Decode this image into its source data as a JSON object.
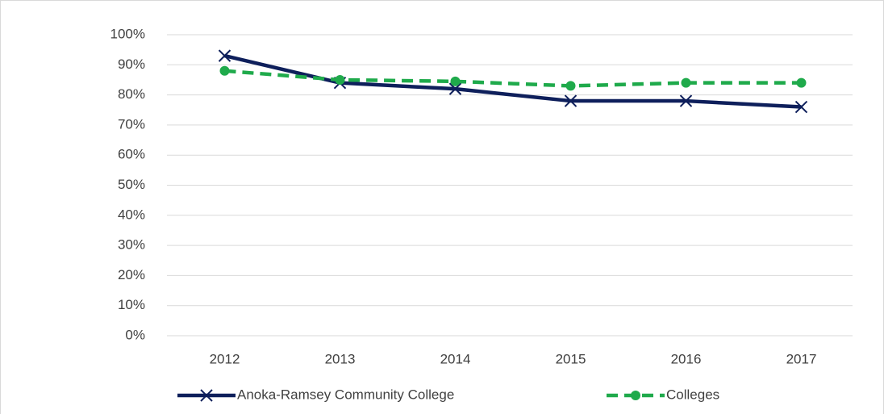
{
  "chart_data": {
    "type": "line",
    "categories": [
      "2012",
      "2013",
      "2014",
      "2015",
      "2016",
      "2017"
    ],
    "series": [
      {
        "name": "Anoka-Ramsey Community College",
        "color": "#0e1f5b",
        "marker": "x",
        "dash": false,
        "values": [
          93,
          84,
          82,
          78,
          78,
          76
        ]
      },
      {
        "name": "Colleges",
        "color": "#1faa4b",
        "marker": "circle",
        "dash": true,
        "values": [
          88,
          85,
          84.5,
          83,
          84,
          84
        ]
      }
    ],
    "ylim": [
      0,
      100
    ],
    "yticks": [
      {
        "value": 0,
        "label": "0%"
      },
      {
        "value": 10,
        "label": "10%"
      },
      {
        "value": 20,
        "label": "20%"
      },
      {
        "value": 30,
        "label": "30%"
      },
      {
        "value": 40,
        "label": "40%"
      },
      {
        "value": 50,
        "label": "50%"
      },
      {
        "value": 60,
        "label": "60%"
      },
      {
        "value": 70,
        "label": "70%"
      },
      {
        "value": 80,
        "label": "80%"
      },
      {
        "value": 90,
        "label": "90%"
      },
      {
        "value": 100,
        "label": "100%"
      }
    ],
    "grid": true,
    "legend": "bottom"
  }
}
